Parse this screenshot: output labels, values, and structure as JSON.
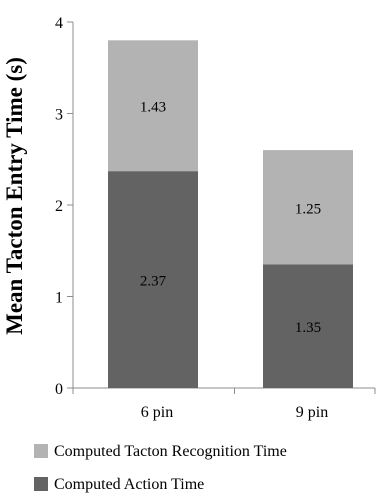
{
  "chart_data": {
    "type": "bar",
    "stacked": true,
    "categories": [
      "6 pin",
      "9 pin"
    ],
    "series": [
      {
        "name": "Computed Action Time",
        "values": [
          2.37,
          1.35
        ],
        "labels": [
          "2.37",
          "1.35"
        ],
        "color": "#636363"
      },
      {
        "name": "Computed Tacton Recognition Time",
        "values": [
          1.43,
          1.25
        ],
        "labels": [
          "1.43",
          "1.25"
        ],
        "color": "#b3b3b3"
      }
    ],
    "title": "",
    "xlabel": "",
    "ylabel": "Mean Tacton Entry Time (s)",
    "ylim": [
      0,
      4
    ],
    "yticks": [
      "0",
      "1",
      "2",
      "3",
      "4"
    ],
    "grid": false,
    "legend_position": "bottom"
  }
}
